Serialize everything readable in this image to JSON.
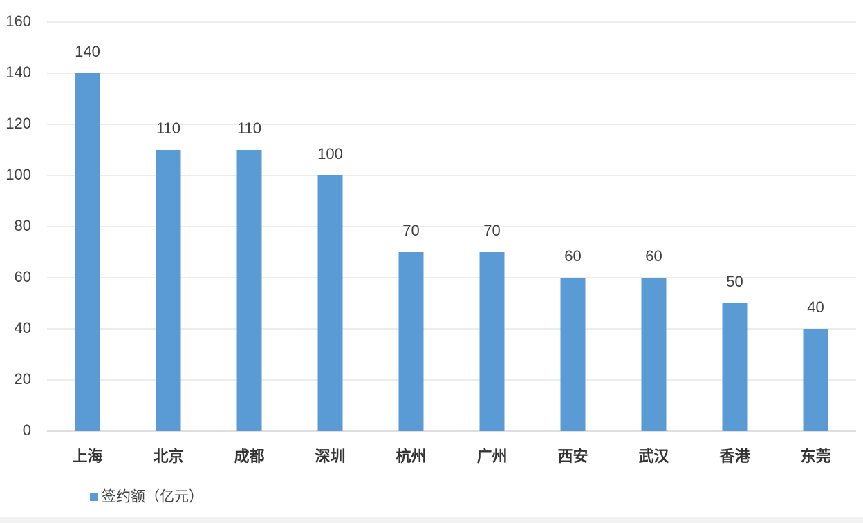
{
  "chart_data": {
    "type": "bar",
    "categories": [
      "上海",
      "北京",
      "成都",
      "深圳",
      "杭州",
      "广州",
      "西安",
      "武汉",
      "香港",
      "东莞"
    ],
    "series": [
      {
        "name": "签约额（亿元）",
        "color": "#5b9bd5",
        "values": [
          140,
          110,
          110,
          100,
          70,
          70,
          60,
          60,
          50,
          40
        ]
      }
    ],
    "ylim": [
      0,
      160
    ],
    "yticks": [
      0,
      20,
      40,
      60,
      80,
      100,
      120,
      140,
      160
    ],
    "grid": true,
    "legend": "bottom-left"
  }
}
